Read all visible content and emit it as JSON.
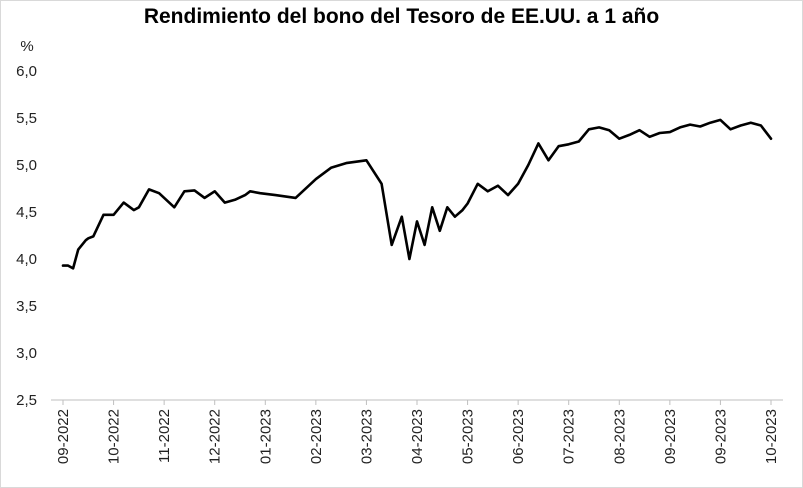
{
  "chart_data": {
    "type": "line",
    "title": "Rendimiento del bono del Tesoro de EE.UU. a 1 año",
    "ylabel": "%",
    "xlabel": "",
    "ylim": [
      2.5,
      6.0
    ],
    "yticks": [
      "2,5",
      "3,0",
      "3,5",
      "4,0",
      "4,5",
      "5,0",
      "5,5",
      "6,0"
    ],
    "xticks": [
      "09-2022",
      "10-2022",
      "11-2022",
      "12-2022",
      "01-2023",
      "02-2023",
      "03-2023",
      "04-2023",
      "05-2023",
      "06-2023",
      "07-2023",
      "08-2023",
      "09-2023",
      "09-2023",
      "10-2023"
    ],
    "grid": false,
    "legend": "none",
    "line_color": "#000000",
    "series": [
      {
        "x": [
          0,
          0.1,
          0.2,
          0.3,
          0.45,
          0.5,
          0.6,
          0.8,
          1.0,
          1.2,
          1.4,
          1.5,
          1.7,
          1.9,
          2.2,
          2.4,
          2.6,
          2.8,
          3.0,
          3.2,
          3.4,
          3.6,
          3.7,
          3.9,
          4.2,
          4.6,
          5.0,
          5.3,
          5.6,
          6.0,
          6.3,
          6.5,
          6.7,
          6.85,
          7.0,
          7.15,
          7.3,
          7.45,
          7.6,
          7.75,
          7.9,
          8.0,
          8.2,
          8.4,
          8.6,
          8.8,
          9.0,
          9.2,
          9.4,
          9.6,
          9.8,
          10.0,
          10.2,
          10.4,
          10.6,
          10.8,
          11.0,
          11.2,
          11.4,
          11.6,
          11.8,
          12.0,
          12.2,
          12.4,
          12.6,
          12.8,
          13.0,
          13.2,
          13.4,
          13.6,
          13.8,
          14.0
        ],
        "y": [
          3.93,
          3.93,
          3.9,
          4.1,
          4.2,
          4.22,
          4.24,
          4.47,
          4.47,
          4.6,
          4.52,
          4.55,
          4.74,
          4.7,
          4.55,
          4.72,
          4.73,
          4.65,
          4.72,
          4.6,
          4.63,
          4.68,
          4.72,
          4.7,
          4.68,
          4.65,
          4.85,
          4.97,
          5.02,
          5.05,
          4.8,
          4.15,
          4.45,
          4.0,
          4.4,
          4.15,
          4.55,
          4.3,
          4.55,
          4.45,
          4.52,
          4.59,
          4.8,
          4.72,
          4.78,
          4.68,
          4.8,
          5.0,
          5.23,
          5.05,
          5.2,
          5.22,
          5.25,
          5.38,
          5.4,
          5.37,
          5.28,
          5.32,
          5.37,
          5.3,
          5.34,
          5.35,
          5.4,
          5.43,
          5.41,
          5.45,
          5.48,
          5.38,
          5.42,
          5.45,
          5.42,
          5.28
        ]
      }
    ]
  }
}
